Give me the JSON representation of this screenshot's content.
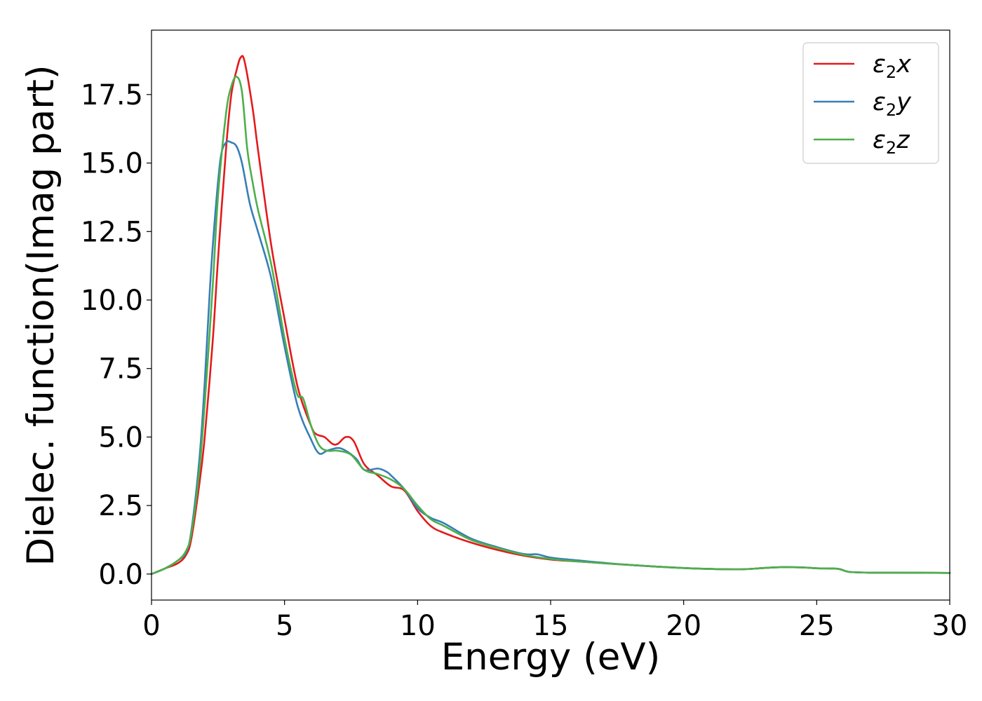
{
  "chart_data": {
    "type": "line",
    "title": "",
    "xlabel": "Energy (eV)",
    "ylabel": "Dielec. function(Imag part)",
    "xlim": [
      0,
      30
    ],
    "ylim": [
      -0.95,
      19.85
    ],
    "xticks": [
      0,
      5,
      10,
      15,
      20,
      25,
      30
    ],
    "xtick_labels": [
      "0",
      "5",
      "10",
      "15",
      "20",
      "25",
      "30"
    ],
    "yticks": [
      0.0,
      2.5,
      5.0,
      7.5,
      10.0,
      12.5,
      15.0,
      17.5
    ],
    "ytick_labels": [
      "0.0",
      "2.5",
      "5.0",
      "7.5",
      "10.0",
      "12.5",
      "15.0",
      "17.5"
    ],
    "grid": false,
    "legend_position": "top-right",
    "series": [
      {
        "name": "ε2x",
        "legend_symbol": "ε",
        "legend_sub": "2",
        "legend_var": "x",
        "color": "#e41a1c",
        "x": [
          0,
          0.5,
          1.0,
          1.3,
          1.5,
          1.8,
          2.0,
          2.3,
          2.5,
          2.8,
          3.0,
          3.2,
          3.35,
          3.5,
          3.8,
          4.0,
          4.5,
          5.0,
          5.5,
          6.0,
          6.2,
          6.5,
          6.8,
          7.0,
          7.3,
          7.6,
          8.0,
          8.5,
          9.0,
          9.5,
          10.0,
          10.5,
          11.0,
          12.0,
          13.0,
          14.0,
          15.0,
          16.0,
          18.0,
          20.0,
          22.0,
          23.0,
          23.7,
          24.5,
          25.0,
          25.8,
          26.2,
          27.0,
          28.0,
          30.0
        ],
        "y": [
          0.0,
          0.2,
          0.4,
          0.7,
          1.3,
          3.3,
          5.0,
          8.5,
          11.5,
          15.5,
          17.5,
          18.4,
          18.85,
          18.7,
          17.0,
          15.5,
          12.0,
          9.3,
          6.8,
          5.4,
          5.1,
          5.0,
          4.75,
          4.75,
          5.0,
          4.85,
          4.0,
          3.6,
          3.2,
          3.05,
          2.3,
          1.75,
          1.5,
          1.15,
          0.88,
          0.67,
          0.53,
          0.46,
          0.33,
          0.22,
          0.17,
          0.22,
          0.25,
          0.24,
          0.21,
          0.19,
          0.08,
          0.05,
          0.05,
          0.04
        ]
      },
      {
        "name": "ε2y",
        "legend_symbol": "ε",
        "legend_sub": "2",
        "legend_var": "y",
        "color": "#377eb8",
        "x": [
          0,
          0.5,
          1.0,
          1.3,
          1.5,
          1.8,
          2.0,
          2.2,
          2.4,
          2.6,
          2.8,
          3.0,
          3.2,
          3.4,
          3.7,
          4.0,
          4.5,
          5.0,
          5.5,
          6.0,
          6.3,
          6.6,
          7.0,
          7.3,
          7.7,
          8.0,
          8.5,
          8.8,
          9.0,
          9.5,
          10.0,
          10.5,
          11.0,
          12.0,
          13.0,
          14.0,
          14.5,
          15.0,
          16.0,
          18.0,
          20.0,
          22.0,
          23.0,
          23.7,
          24.5,
          25.0,
          25.8,
          26.2,
          27.0,
          28.0,
          30.0
        ],
        "y": [
          0.0,
          0.2,
          0.5,
          0.8,
          1.6,
          4.2,
          7.0,
          10.5,
          13.2,
          15.2,
          15.75,
          15.75,
          15.6,
          15.0,
          13.5,
          12.5,
          10.8,
          8.3,
          6.1,
          4.9,
          4.4,
          4.5,
          4.6,
          4.5,
          4.2,
          3.8,
          3.85,
          3.75,
          3.6,
          3.1,
          2.4,
          2.05,
          1.85,
          1.3,
          0.98,
          0.73,
          0.72,
          0.6,
          0.5,
          0.33,
          0.22,
          0.17,
          0.22,
          0.25,
          0.24,
          0.21,
          0.19,
          0.08,
          0.05,
          0.05,
          0.04
        ]
      },
      {
        "name": "ε2z",
        "legend_symbol": "ε",
        "legend_sub": "2",
        "legend_var": "z",
        "color": "#4daf4a",
        "x": [
          0,
          0.5,
          1.0,
          1.3,
          1.5,
          1.8,
          2.0,
          2.3,
          2.5,
          2.8,
          3.0,
          3.2,
          3.4,
          3.6,
          3.8,
          4.0,
          4.5,
          5.0,
          5.3,
          5.5,
          5.7,
          6.0,
          6.3,
          6.6,
          7.0,
          7.5,
          8.0,
          8.5,
          9.0,
          9.5,
          10.0,
          10.5,
          11.0,
          12.0,
          13.0,
          14.0,
          15.0,
          16.0,
          18.0,
          20.0,
          22.0,
          23.0,
          23.7,
          24.5,
          25.0,
          25.8,
          26.2,
          27.0,
          28.0,
          30.0
        ],
        "y": [
          0.0,
          0.2,
          0.5,
          0.85,
          1.5,
          3.8,
          6.2,
          10.5,
          13.8,
          16.8,
          17.8,
          18.15,
          17.6,
          15.5,
          14.3,
          13.3,
          11.3,
          8.6,
          7.2,
          6.5,
          6.4,
          5.4,
          4.7,
          4.5,
          4.5,
          4.35,
          3.8,
          3.65,
          3.45,
          3.1,
          2.5,
          2.0,
          1.75,
          1.25,
          0.95,
          0.7,
          0.55,
          0.46,
          0.33,
          0.22,
          0.17,
          0.22,
          0.25,
          0.24,
          0.21,
          0.19,
          0.08,
          0.05,
          0.05,
          0.04
        ]
      }
    ]
  }
}
